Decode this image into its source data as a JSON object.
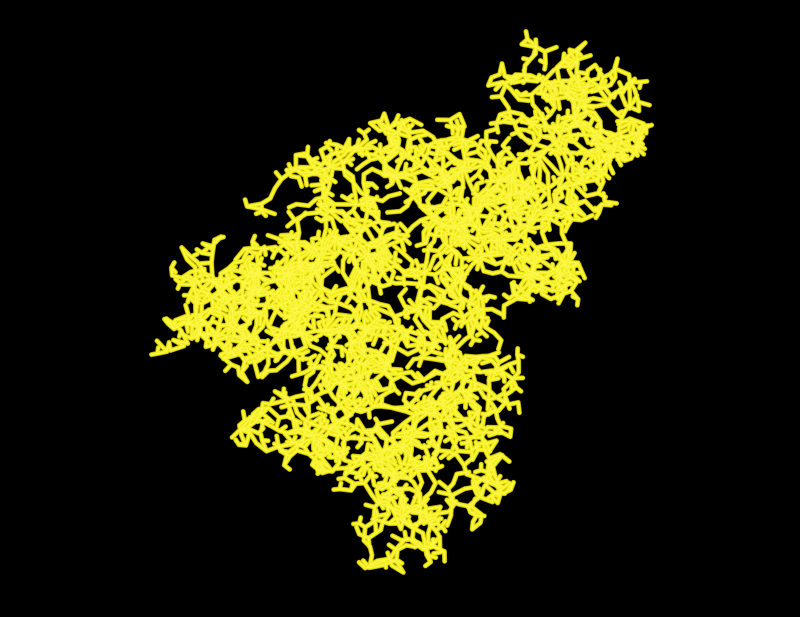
{
  "viewer": {
    "background_color": "#000000",
    "representation": "sticks",
    "molecule_color": "#f2ec1a",
    "highlight_color": "#fffb5c",
    "shadow_color": "#b8b000"
  }
}
